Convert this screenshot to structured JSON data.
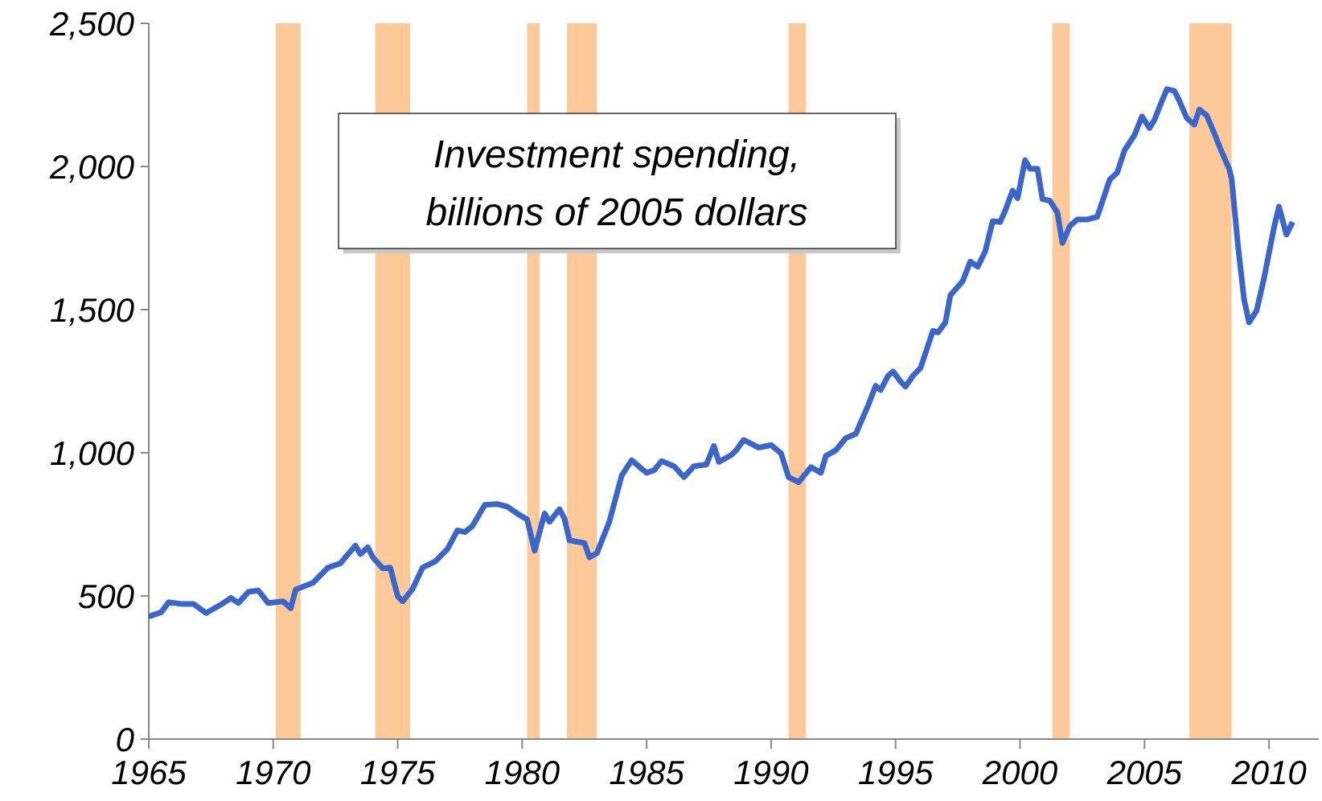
{
  "chart_data": {
    "type": "line",
    "annotation": [
      "Investment spending,",
      "billions of 2005 dollars"
    ],
    "x": [
      1965.0,
      1965.5,
      1965.8,
      1966.3,
      1966.8,
      1967.3,
      1968.0,
      1968.3,
      1968.6,
      1969.0,
      1969.4,
      1969.8,
      1970.4,
      1970.7,
      1970.9,
      1971.6,
      1972.2,
      1972.7,
      1973.3,
      1973.5,
      1973.8,
      1974.0,
      1974.4,
      1974.7,
      1975.0,
      1975.2,
      1975.6,
      1976.0,
      1976.5,
      1977.0,
      1977.4,
      1977.7,
      1978.0,
      1978.5,
      1979.0,
      1979.4,
      1979.8,
      1980.2,
      1980.5,
      1980.9,
      1981.1,
      1981.5,
      1981.7,
      1981.9,
      1982.5,
      1982.7,
      1983.0,
      1983.5,
      1984.0,
      1984.4,
      1984.8,
      1985.0,
      1985.3,
      1985.6,
      1986.1,
      1986.5,
      1986.9,
      1987.4,
      1987.7,
      1987.9,
      1988.4,
      1988.6,
      1988.9,
      1989.5,
      1990.0,
      1990.4,
      1990.7,
      1991.1,
      1991.6,
      1992.0,
      1992.2,
      1992.6,
      1993.0,
      1993.4,
      1993.9,
      1994.2,
      1994.4,
      1994.7,
      1994.9,
      1995.2,
      1995.4,
      1995.7,
      1996.0,
      1996.5,
      1996.7,
      1997.0,
      1997.2,
      1997.7,
      1998.0,
      1998.3,
      1998.6,
      1998.9,
      1999.2,
      1999.4,
      1999.7,
      1999.9,
      2000.2,
      2000.4,
      2000.7,
      2000.9,
      2001.2,
      2001.5,
      2001.7,
      2002.0,
      2002.3,
      2002.7,
      2003.1,
      2003.6,
      2003.9,
      2004.2,
      2004.6,
      2004.9,
      2005.2,
      2005.4,
      2005.7,
      2005.9,
      2006.2,
      2006.4,
      2006.7,
      2007.0,
      2007.2,
      2007.5,
      2007.8,
      2008.1,
      2008.4,
      2008.5,
      2008.75,
      2009.0,
      2009.2,
      2009.5,
      2009.8,
      2010.2,
      2010.4,
      2010.7,
      2010.95
    ],
    "series": [
      {
        "color": "#3a66cc",
        "values": [
          428,
          443,
          478,
          472,
          472,
          440,
          475,
          493,
          475,
          514,
          519,
          475,
          481,
          457,
          522,
          546,
          599,
          614,
          676,
          646,
          670,
          635,
          596,
          599,
          499,
          481,
          525,
          599,
          620,
          664,
          729,
          723,
          744,
          818,
          821,
          812,
          788,
          767,
          658,
          788,
          759,
          803,
          770,
          694,
          685,
          635,
          649,
          759,
          921,
          974,
          944,
          930,
          939,
          971,
          953,
          915,
          953,
          959,
          1024,
          968,
          992,
          1009,
          1045,
          1018,
          1027,
          998,
          915,
          897,
          950,
          930,
          989,
          1009,
          1051,
          1066,
          1166,
          1234,
          1219,
          1269,
          1284,
          1249,
          1231,
          1269,
          1296,
          1426,
          1420,
          1455,
          1550,
          1600,
          1668,
          1650,
          1703,
          1809,
          1806,
          1845,
          1916,
          1889,
          2022,
          1992,
          1992,
          1886,
          1880,
          1839,
          1733,
          1792,
          1815,
          1815,
          1824,
          1954,
          1978,
          2057,
          2110,
          2175,
          2134,
          2163,
          2229,
          2270,
          2264,
          2229,
          2169,
          2146,
          2199,
          2178,
          2116,
          2051,
          1992,
          1957,
          1727,
          1535,
          1455,
          1496,
          1609,
          1786,
          1860,
          1762,
          1806
        ]
      }
    ],
    "shaded_ranges": [
      [
        1970.1,
        1971.1
      ],
      [
        1974.1,
        1975.5
      ],
      [
        1980.2,
        1980.7
      ],
      [
        1981.8,
        1983.0
      ],
      [
        1990.7,
        1991.4
      ],
      [
        2001.3,
        2002.0
      ],
      [
        2006.8,
        2008.5
      ]
    ],
    "shade_color": "#fdc998",
    "xlim": [
      1965,
      2012
    ],
    "xticks": [
      1965,
      1970,
      1975,
      1980,
      1985,
      1990,
      1995,
      2000,
      2005,
      2010
    ],
    "ylim": [
      0,
      2500
    ],
    "yticks": [
      0,
      500,
      {
        "value": 1000,
        "label": "1,000"
      },
      {
        "value": 1500,
        "label": "1,500"
      },
      {
        "value": 2000,
        "label": "2,000"
      },
      {
        "value": 2500,
        "label": "2,500"
      }
    ]
  }
}
